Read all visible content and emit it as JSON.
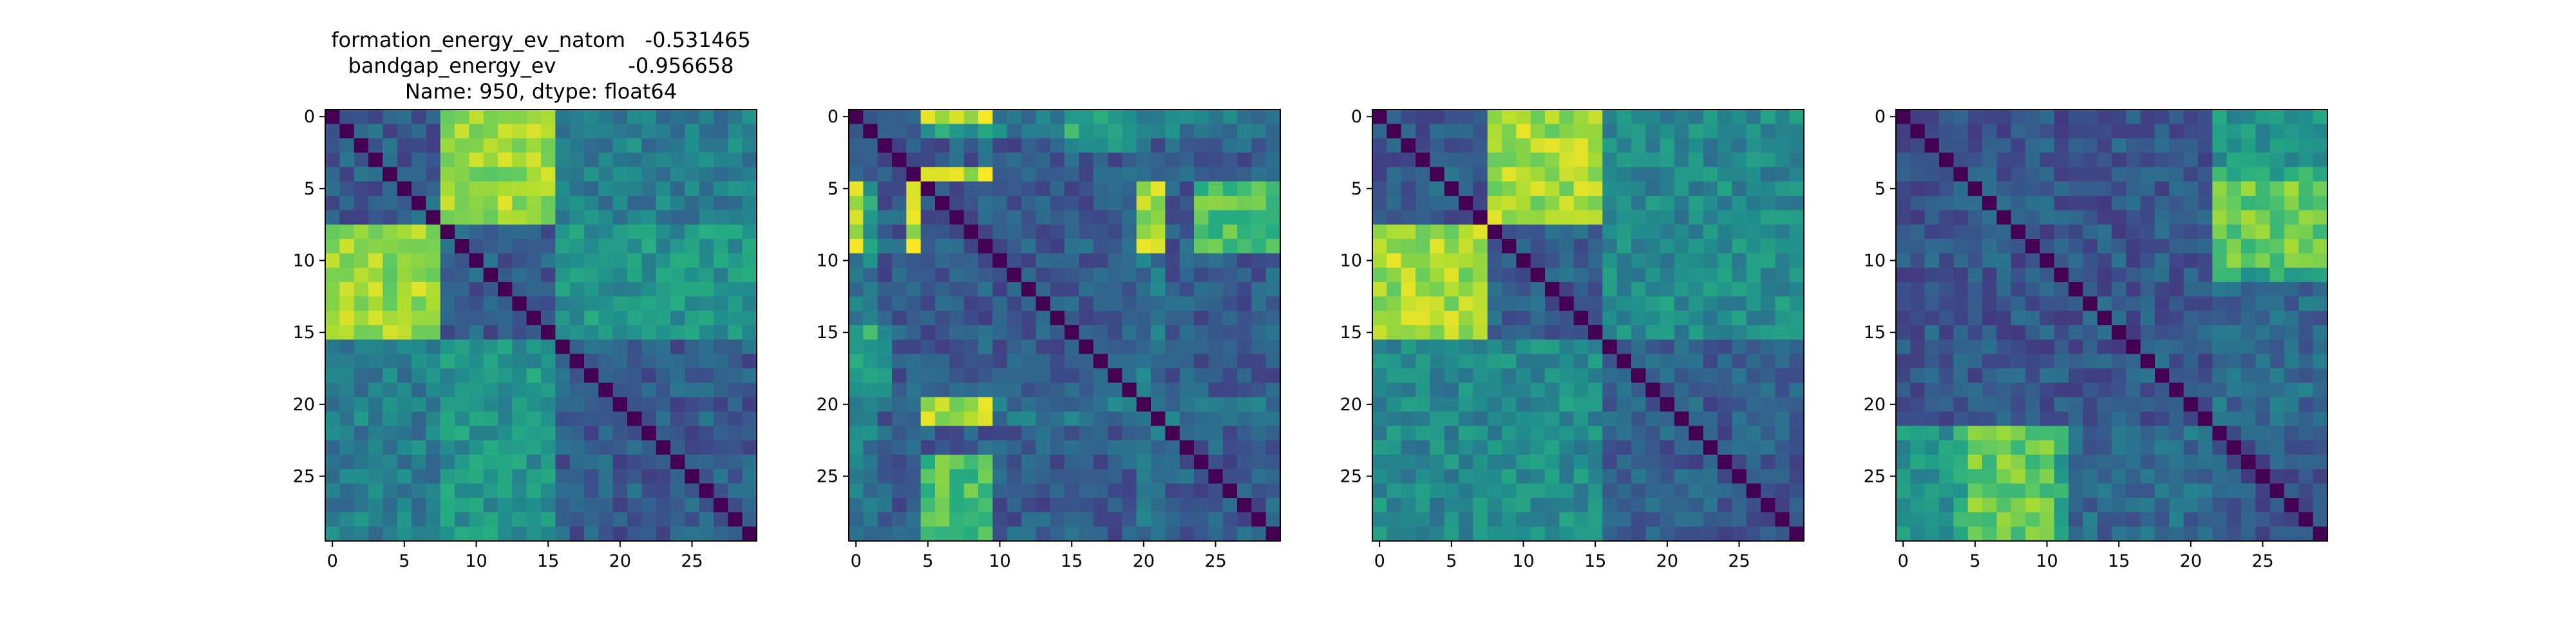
{
  "figure": {
    "title_lines": [
      "formation_energy_ev_natom   -0.531465",
      "bandgap_energy_ev           -0.956658",
      "Name: 950, dtype: float64"
    ]
  },
  "chart_data": [
    {
      "type": "heatmap",
      "title": "",
      "xlabel": "",
      "ylabel": "",
      "matrix_size": 30,
      "xticks": [
        0,
        5,
        10,
        15,
        20,
        25
      ],
      "yticks": [
        0,
        5,
        10,
        15,
        20,
        25
      ],
      "colormap": "viridis",
      "diagonal_value": 0,
      "blocks": [
        {
          "rows": [
            0,
            7
          ],
          "cols": [
            8,
            15
          ],
          "value": 0.85
        },
        {
          "rows": [
            8,
            15
          ],
          "cols": [
            0,
            7
          ],
          "value": 0.85
        },
        {
          "rows": [
            16,
            29
          ],
          "cols": [
            8,
            15
          ],
          "value": 0.55
        },
        {
          "rows": [
            8,
            15
          ],
          "cols": [
            16,
            29
          ],
          "value": 0.5
        },
        {
          "rows": [
            16,
            29
          ],
          "cols": [
            0,
            7
          ],
          "value": 0.45
        },
        {
          "rows": [
            0,
            7
          ],
          "cols": [
            16,
            29
          ],
          "value": 0.42
        }
      ],
      "background_value": 0.3,
      "seed": 11
    },
    {
      "type": "heatmap",
      "title": "",
      "xlabel": "",
      "ylabel": "",
      "matrix_size": 30,
      "xticks": [
        0,
        5,
        10,
        15,
        20,
        25
      ],
      "yticks": [
        0,
        5,
        10,
        15,
        20,
        25
      ],
      "colormap": "viridis",
      "diagonal_value": 0,
      "blocks": [
        {
          "rows": [
            0,
            0
          ],
          "cols": [
            5,
            9
          ],
          "value": 0.95
        },
        {
          "rows": [
            4,
            4
          ],
          "cols": [
            4,
            9
          ],
          "value": 0.95
        },
        {
          "rows": [
            20,
            21
          ],
          "cols": [
            5,
            9
          ],
          "value": 0.9
        },
        {
          "rows": [
            5,
            9
          ],
          "cols": [
            0,
            1
          ],
          "value": 0.85
        },
        {
          "rows": [
            5,
            9
          ],
          "cols": [
            4,
            4
          ],
          "value": 0.9
        },
        {
          "rows": [
            5,
            9
          ],
          "cols": [
            20,
            21
          ],
          "value": 0.85
        },
        {
          "rows": [
            24,
            29
          ],
          "cols": [
            5,
            9
          ],
          "value": 0.72
        },
        {
          "rows": [
            5,
            9
          ],
          "cols": [
            24,
            29
          ],
          "value": 0.72
        },
        {
          "rows": [
            0,
            2
          ],
          "cols": [
            15,
            19
          ],
          "value": 0.65
        },
        {
          "rows": [
            10,
            29
          ],
          "cols": [
            0,
            1
          ],
          "value": 0.55
        },
        {
          "rows": [
            10,
            29
          ],
          "cols": [
            20,
            21
          ],
          "value": 0.5
        }
      ],
      "background_value": 0.3,
      "seed": 23
    },
    {
      "type": "heatmap",
      "title": "",
      "xlabel": "",
      "ylabel": "",
      "matrix_size": 30,
      "xticks": [
        0,
        5,
        10,
        15,
        20,
        25
      ],
      "yticks": [
        0,
        5,
        10,
        15,
        20,
        25
      ],
      "colormap": "viridis",
      "diagonal_value": 0,
      "blocks": [
        {
          "rows": [
            0,
            7
          ],
          "cols": [
            8,
            15
          ],
          "value": 0.88
        },
        {
          "rows": [
            8,
            15
          ],
          "cols": [
            0,
            7
          ],
          "value": 0.85
        },
        {
          "rows": [
            16,
            29
          ],
          "cols": [
            8,
            15
          ],
          "value": 0.5
        },
        {
          "rows": [
            8,
            15
          ],
          "cols": [
            16,
            29
          ],
          "value": 0.48
        },
        {
          "rows": [
            16,
            29
          ],
          "cols": [
            0,
            7
          ],
          "value": 0.5
        },
        {
          "rows": [
            0,
            7
          ],
          "cols": [
            16,
            29
          ],
          "value": 0.45
        }
      ],
      "background_value": 0.3,
      "seed": 37
    },
    {
      "type": "heatmap",
      "title": "",
      "xlabel": "",
      "ylabel": "",
      "matrix_size": 30,
      "xticks": [
        0,
        5,
        10,
        15,
        20,
        25
      ],
      "yticks": [
        0,
        5,
        10,
        15,
        20,
        25
      ],
      "colormap": "viridis",
      "diagonal_value": 0,
      "blocks": [
        {
          "rows": [
            5,
            10
          ],
          "cols": [
            22,
            29
          ],
          "value": 0.78
        },
        {
          "rows": [
            22,
            29
          ],
          "cols": [
            4,
            11
          ],
          "value": 0.75
        },
        {
          "rows": [
            0,
            4
          ],
          "cols": [
            22,
            29
          ],
          "value": 0.5
        },
        {
          "rows": [
            22,
            29
          ],
          "cols": [
            0,
            3
          ],
          "value": 0.55
        },
        {
          "rows": [
            11,
            21
          ],
          "cols": [
            22,
            29
          ],
          "value": 0.42
        }
      ],
      "background_value": 0.28,
      "seed": 53
    }
  ]
}
